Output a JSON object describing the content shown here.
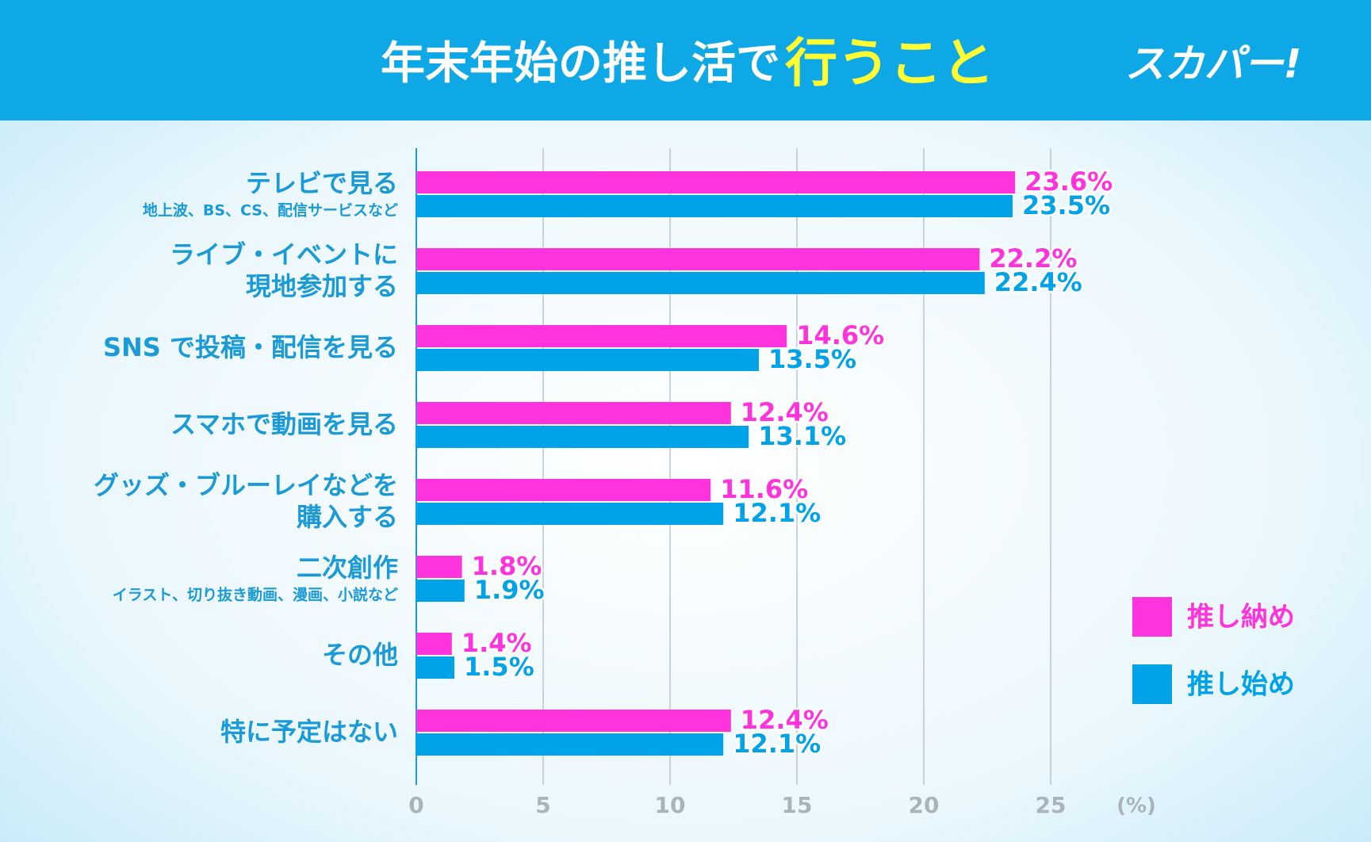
{
  "chart_data": {
    "type": "bar",
    "orientation": "horizontal",
    "title": "年末年始の推し活で",
    "title_highlight": "行うこと",
    "logo": "スカパー!",
    "categories": [
      {
        "lines": [
          "テレビで見る"
        ],
        "note": "地上波、BS、CS、配信サービスなど"
      },
      {
        "lines": [
          "ライブ・イベントに",
          "現地参加する"
        ]
      },
      {
        "lines": [
          "SNS で投稿・配信を見る"
        ]
      },
      {
        "lines": [
          "スマホで動画を見る"
        ]
      },
      {
        "lines": [
          "グッズ・ブルーレイなどを",
          "購入する"
        ]
      },
      {
        "lines": [
          "二次創作"
        ],
        "note": "イラスト、切り抜き動画、漫画、小説など"
      },
      {
        "lines": [
          "その他"
        ]
      },
      {
        "lines": [
          "特に予定はない"
        ]
      }
    ],
    "series": [
      {
        "name": "推し納め",
        "color": "#ff33dd",
        "values": [
          23.6,
          22.2,
          14.6,
          12.4,
          11.6,
          1.8,
          1.4,
          12.4
        ],
        "value_labels": [
          "23.6%",
          "22.2%",
          "14.6%",
          "12.4%",
          "11.6%",
          "1.8%",
          "1.4%",
          "12.4%"
        ]
      },
      {
        "name": "推し始め",
        "color": "#00a3e8",
        "values": [
          23.5,
          22.4,
          13.5,
          13.1,
          12.1,
          1.9,
          1.5,
          12.1
        ],
        "value_labels": [
          "23.5%",
          "22.4%",
          "13.5%",
          "13.1%",
          "12.1%",
          "1.9%",
          "1.5%",
          "12.1%"
        ]
      }
    ],
    "xlim": [
      0,
      25
    ],
    "xticks": [
      0,
      5,
      10,
      15,
      20,
      25
    ],
    "x_unit": "(%)",
    "grid": true
  }
}
